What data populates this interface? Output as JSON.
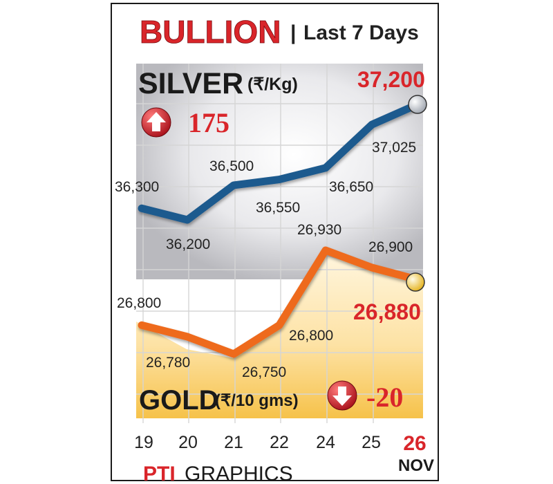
{
  "title": {
    "main": "BULLION",
    "separator": "|",
    "sub": "Last 7 Days"
  },
  "silver": {
    "label": "SILVER",
    "unit": "(₹/Kg)",
    "latest": "37,200",
    "change": "175",
    "change_direction": "up",
    "icon": "up-arrow-badge-icon"
  },
  "gold": {
    "label": "GOLD",
    "unit": "(₹/10 gms)",
    "latest": "26,880",
    "change": "-20",
    "change_direction": "down",
    "icon": "down-arrow-badge-icon"
  },
  "x_month": "NOV",
  "credit": {
    "logo": "PTI",
    "text": "GRAPHICS"
  },
  "colors": {
    "silver_line": "#1e5a8e",
    "gold_line": "#ee6a1e",
    "highlight_red": "#d9252a",
    "text": "#222222"
  },
  "chart_data": {
    "type": "line",
    "categories": [
      "19",
      "20",
      "21",
      "22",
      "24",
      "25",
      "26"
    ],
    "series": [
      {
        "name": "SILVER",
        "values": [
          36300,
          36200,
          36500,
          36550,
          36650,
          37025,
          37200
        ],
        "labels": [
          "36,300",
          "36,200",
          "36,500",
          "36,550",
          "36,650",
          "37,025",
          ""
        ]
      },
      {
        "name": "GOLD",
        "values": [
          26800,
          26780,
          26750,
          26800,
          26930,
          26900,
          26880
        ],
        "labels": [
          "26,800",
          "26,780",
          "26,750",
          "26,800",
          "26,930",
          "26,900",
          ""
        ]
      }
    ],
    "grid": true
  }
}
